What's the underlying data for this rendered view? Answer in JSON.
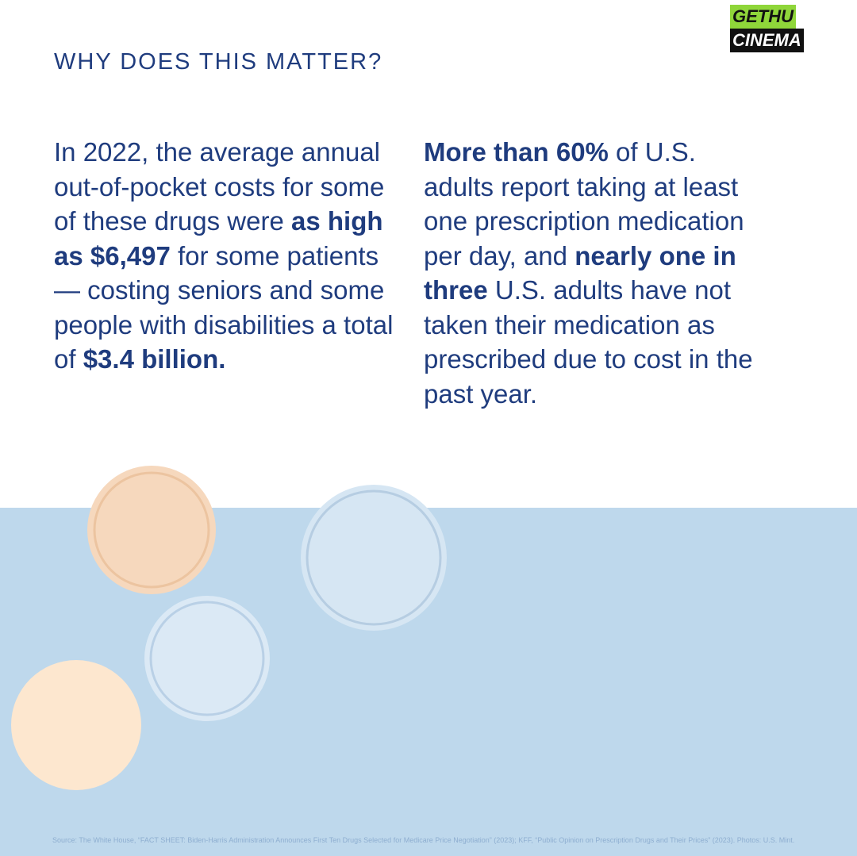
{
  "watermark": {
    "left": "GETHU",
    "right": "CINEMA"
  },
  "heading": "WHY DOES THIS MATTER?",
  "columns": [
    {
      "runs": [
        {
          "text": "In 2022, the average annual out-of-pocket costs for some of these drugs were ",
          "bold": false
        },
        {
          "text": "as high as $6,497",
          "bold": true
        },
        {
          "text": " for some patients— costing seniors and some people with disabilities a total of ",
          "bold": false
        },
        {
          "text": "$3.4 billion.",
          "bold": true
        }
      ]
    },
    {
      "runs": [
        {
          "text": "More than 60%",
          "bold": true
        },
        {
          "text": " of U.S. adults report taking at least one prescription medication per day, and ",
          "bold": false
        },
        {
          "text": "nearly one in three",
          "bold": true
        },
        {
          "text": " U.S. adults have not taken their medication as prescribed due to cost in the past year.",
          "bold": false
        }
      ]
    }
  ],
  "source": "Source: The White House, “FACT SHEET: Biden-Harris Administration Announces First Ten Drugs Selected for Medicare Price Negotiation” (2023); KFF, “Public Opinion on Prescription Drugs and Their Prices” (2023). Photos: U.S. Mint."
}
